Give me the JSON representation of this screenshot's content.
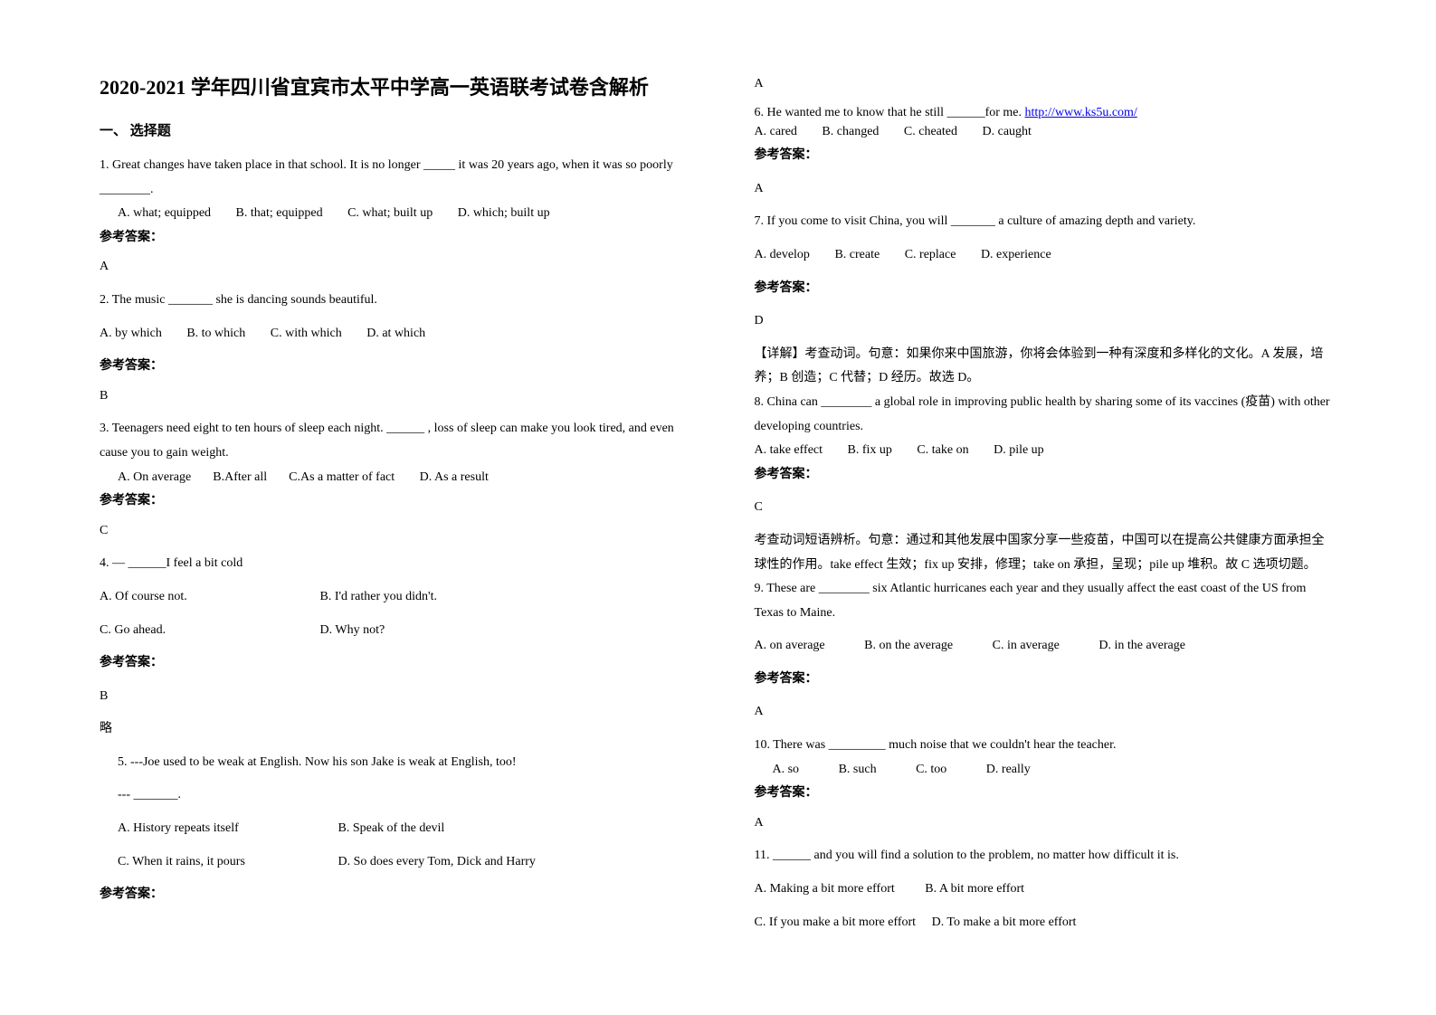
{
  "title": "2020-2021 学年四川省宜宾市太平中学高一英语联考试卷含解析",
  "section1": "一、 选择题",
  "q1": {
    "text": "1. Great changes have taken place in that school. It is no longer _____ it was 20 years ago, when it was so poorly ________.",
    "optA": "A. what; equipped",
    "optB": "B. that; equipped",
    "optC": "C. what; built up",
    "optD": "D. which; built up",
    "answerLabel": "参考答案：",
    "answer": "A"
  },
  "q2": {
    "text": "2. The music _______ she is dancing sounds beautiful.",
    "optA": "A. by which",
    "optB": "B. to which",
    "optC": "C. with which",
    "optD": "D. at which",
    "answerLabel": "参考答案：",
    "answer": "B"
  },
  "q3": {
    "text": "3. Teenagers need eight to ten hours of sleep each night. ______ , loss of sleep can make you look tired, and even cause you to gain weight.",
    "optA": "A. On average",
    "optB": "B.After all",
    "optC": "C.As a matter of fact",
    "optD": "D. As a result",
    "answerLabel": "参考答案：",
    "answer": "C"
  },
  "q4": {
    "text": "4. — ______I feel a bit cold",
    "optA": "A. Of course not.",
    "optB": "B. I'd rather you didn't.",
    "optC": "C. Go ahead.",
    "optD": "D. Why not?",
    "answerLabel": "参考答案：",
    "answer": "B",
    "note": "略"
  },
  "q5": {
    "text": "5. ---Joe used to be weak at English. Now his son Jake is weak at English, too!",
    "text2": "--- _______.",
    "optA": "A. History repeats itself",
    "optB": "B. Speak of the devil",
    "optC": "C. When it rains, it pours",
    "optD": "D. So does every Tom, Dick and Harry",
    "answerLabel": "参考答案：",
    "answer": "A"
  },
  "q6": {
    "text": "6. He wanted me to know that he still ______for me. ",
    "link": "http://www.ks5u.com/",
    "optA": "A. cared",
    "optB": "B. changed",
    "optC": "C. cheated",
    "optD": "D. caught",
    "answerLabel": "参考答案：",
    "answer": "A"
  },
  "q7": {
    "text": "7. If you come to visit China, you will _______ a culture of amazing depth and variety.",
    "optA": "A. develop",
    "optB": "B. create",
    "optC": "C. replace",
    "optD": "D. experience",
    "answerLabel": "参考答案：",
    "answer": "D",
    "explanation": "【详解】考查动词。句意：如果你来中国旅游，你将会体验到一种有深度和多样化的文化。A 发展，培养；B 创造；C 代替；D 经历。故选 D。"
  },
  "q8": {
    "text": "8. China can ________ a global role in improving public health by sharing some of its vaccines (疫苗) with other developing countries.",
    "optA": "A. take effect",
    "optB": "B. fix up",
    "optC": "C. take on",
    "optD": "D. pile up",
    "answerLabel": "参考答案：",
    "answer": "C",
    "explanation": "考查动词短语辨析。句意：通过和其他发展中国家分享一些疫苗，中国可以在提高公共健康方面承担全球性的作用。take effect 生效；fix up 安排，修理；take on 承担，呈现；pile up 堆积。故 C 选项切题。"
  },
  "q9": {
    "text": "9. These are ________ six Atlantic hurricanes each year and they usually affect the east coast of the US from Texas to Maine.",
    "optA": "A. on average",
    "optB": "B. on the average",
    "optC": "C. in average",
    "optD": "D. in the average",
    "answerLabel": "参考答案：",
    "answer": "A"
  },
  "q10": {
    "text": "10. There was _________ much noise that we couldn't hear the teacher.",
    "optA": "A. so",
    "optB": "B. such",
    "optC": "C. too",
    "optD": "D. really",
    "answerLabel": "参考答案：",
    "answer": "A"
  },
  "q11": {
    "text": "11. ______ and you will find a solution to the problem, no matter how difficult it is.",
    "optA": "A. Making a bit more effort",
    "optB": "B. A bit more effort",
    "optC": "C. If you make a bit more effort",
    "optD": "D. To make a bit more effort"
  }
}
